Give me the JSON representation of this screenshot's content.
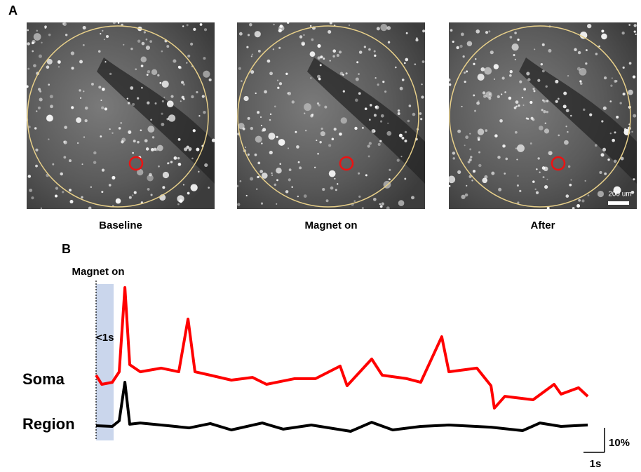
{
  "panel_a": {
    "label": "A",
    "images": [
      {
        "caption": "Baseline"
      },
      {
        "caption": "Magnet on"
      },
      {
        "caption": "After"
      }
    ],
    "scale_bar": "200 um"
  },
  "chart_data": {
    "type": "line",
    "panel_label": "B",
    "annotations": [
      "Magnet on",
      "<1s"
    ],
    "series": [
      {
        "name": "Soma",
        "color": "#ff0000",
        "x": [
          0,
          0.27,
          0.77,
          1.1,
          1.37,
          1.6,
          2.1,
          3.1,
          3.93,
          4.37,
          4.7,
          5.43,
          6.43,
          7.43,
          8.1,
          9.43,
          10.43,
          11.6,
          11.93,
          13.1,
          13.6,
          14.77,
          15.43,
          16.43,
          16.77,
          18.1,
          18.77,
          18.93,
          19.43,
          20.77,
          21.77,
          22.1,
          22.93,
          23.37
        ],
        "values": [
          0,
          -3.7,
          -2.9,
          1.4,
          35.7,
          4.3,
          1.4,
          2.9,
          1.4,
          22.9,
          1.4,
          0,
          -2,
          -0.9,
          -3.7,
          -1.4,
          -1.4,
          3.7,
          -4.3,
          6.6,
          0,
          -1.4,
          -2.9,
          15.7,
          1.4,
          2.9,
          -4.3,
          -13.4,
          -8.6,
          -10,
          -3.7,
          -7.7,
          -5.1,
          -8.6
        ]
      },
      {
        "name": "Region",
        "color": "#000000",
        "x": [
          0,
          0.77,
          1.1,
          1.37,
          1.6,
          2.1,
          3.43,
          4.43,
          5.43,
          6.43,
          7.9,
          8.9,
          10.23,
          12.1,
          13.1,
          14.1,
          15.43,
          16.77,
          18.77,
          20.27,
          21.1,
          22.1,
          23.37
        ],
        "values": [
          0,
          -0.3,
          2,
          17.7,
          0.6,
          1.1,
          0,
          -0.9,
          0.9,
          -1.7,
          1.1,
          -1.4,
          0.3,
          -2.3,
          1.4,
          -1.7,
          -0.3,
          0.3,
          -0.6,
          -2,
          1.1,
          -0.3,
          0.3
        ]
      }
    ],
    "scale_x": {
      "value": 1,
      "label": "1s"
    },
    "scale_y": {
      "value": 10,
      "label": "10%"
    }
  }
}
